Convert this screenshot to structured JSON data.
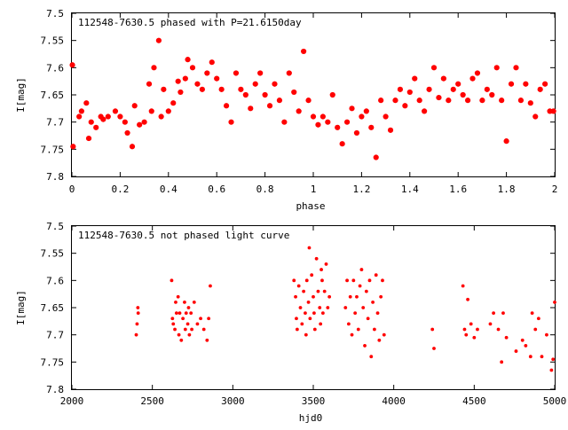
{
  "chart_data": [
    {
      "type": "scatter",
      "title": "112548-7630.5 phased with P=21.6150day",
      "xlabel": "phase",
      "ylabel": "I[mag]",
      "xlim": [
        0,
        2
      ],
      "ylim": [
        7.5,
        7.8
      ],
      "y_inverted": true,
      "xticks": [
        "0",
        "0.2",
        "0.4",
        "0.6",
        "0.8",
        "1",
        "1.2",
        "1.4",
        "1.6",
        "1.8",
        "2"
      ],
      "yticks": [
        "7.5",
        "7.55",
        "7.6",
        "7.65",
        "7.7",
        "7.75",
        "7.8"
      ],
      "grid": false,
      "marker_color": "#ff0000",
      "points": [
        [
          0.002,
          7.595
        ],
        [
          0.005,
          7.745
        ],
        [
          0.03,
          7.69
        ],
        [
          0.04,
          7.68
        ],
        [
          0.06,
          7.665
        ],
        [
          0.07,
          7.73
        ],
        [
          0.08,
          7.7
        ],
        [
          0.1,
          7.71
        ],
        [
          0.12,
          7.69
        ],
        [
          0.13,
          7.695
        ],
        [
          0.15,
          7.69
        ],
        [
          0.18,
          7.68
        ],
        [
          0.2,
          7.69
        ],
        [
          0.22,
          7.7
        ],
        [
          0.23,
          7.72
        ],
        [
          0.25,
          7.745
        ],
        [
          0.26,
          7.67
        ],
        [
          0.28,
          7.705
        ],
        [
          0.3,
          7.7
        ],
        [
          0.32,
          7.63
        ],
        [
          0.33,
          7.68
        ],
        [
          0.34,
          7.6
        ],
        [
          0.36,
          7.55
        ],
        [
          0.37,
          7.69
        ],
        [
          0.38,
          7.64
        ],
        [
          0.4,
          7.68
        ],
        [
          0.42,
          7.665
        ],
        [
          0.44,
          7.625
        ],
        [
          0.45,
          7.645
        ],
        [
          0.47,
          7.62
        ],
        [
          0.48,
          7.585
        ],
        [
          0.5,
          7.6
        ],
        [
          0.52,
          7.63
        ],
        [
          0.54,
          7.64
        ],
        [
          0.56,
          7.61
        ],
        [
          0.58,
          7.59
        ],
        [
          0.6,
          7.62
        ],
        [
          0.62,
          7.64
        ],
        [
          0.64,
          7.67
        ],
        [
          0.66,
          7.7
        ],
        [
          0.68,
          7.61
        ],
        [
          0.7,
          7.64
        ],
        [
          0.72,
          7.65
        ],
        [
          0.74,
          7.675
        ],
        [
          0.76,
          7.63
        ],
        [
          0.78,
          7.61
        ],
        [
          0.8,
          7.65
        ],
        [
          0.82,
          7.67
        ],
        [
          0.84,
          7.63
        ],
        [
          0.86,
          7.66
        ],
        [
          0.88,
          7.7
        ],
        [
          0.9,
          7.61
        ],
        [
          0.92,
          7.645
        ],
        [
          0.94,
          7.68
        ],
        [
          0.96,
          7.57
        ],
        [
          0.98,
          7.66
        ],
        [
          1.0,
          7.69
        ],
        [
          1.02,
          7.705
        ],
        [
          1.04,
          7.69
        ],
        [
          1.06,
          7.7
        ],
        [
          1.08,
          7.65
        ],
        [
          1.1,
          7.71
        ],
        [
          1.12,
          7.74
        ],
        [
          1.14,
          7.7
        ],
        [
          1.16,
          7.675
        ],
        [
          1.18,
          7.72
        ],
        [
          1.2,
          7.69
        ],
        [
          1.22,
          7.68
        ],
        [
          1.24,
          7.71
        ],
        [
          1.26,
          7.765
        ],
        [
          1.28,
          7.66
        ],
        [
          1.3,
          7.69
        ],
        [
          1.32,
          7.715
        ],
        [
          1.34,
          7.66
        ],
        [
          1.36,
          7.64
        ],
        [
          1.38,
          7.67
        ],
        [
          1.4,
          7.645
        ],
        [
          1.42,
          7.62
        ],
        [
          1.44,
          7.66
        ],
        [
          1.46,
          7.68
        ],
        [
          1.48,
          7.64
        ],
        [
          1.5,
          7.6
        ],
        [
          1.52,
          7.655
        ],
        [
          1.54,
          7.62
        ],
        [
          1.56,
          7.66
        ],
        [
          1.58,
          7.64
        ],
        [
          1.6,
          7.63
        ],
        [
          1.62,
          7.65
        ],
        [
          1.64,
          7.66
        ],
        [
          1.66,
          7.62
        ],
        [
          1.68,
          7.61
        ],
        [
          1.7,
          7.66
        ],
        [
          1.72,
          7.64
        ],
        [
          1.74,
          7.65
        ],
        [
          1.76,
          7.6
        ],
        [
          1.78,
          7.66
        ],
        [
          1.8,
          7.735
        ],
        [
          1.82,
          7.63
        ],
        [
          1.84,
          7.6
        ],
        [
          1.86,
          7.66
        ],
        [
          1.88,
          7.63
        ],
        [
          1.9,
          7.665
        ],
        [
          1.92,
          7.69
        ],
        [
          1.94,
          7.64
        ],
        [
          1.96,
          7.63
        ],
        [
          1.98,
          7.68
        ],
        [
          1.995,
          7.68
        ]
      ]
    },
    {
      "type": "scatter",
      "title": "112548-7630.5 not phased light curve",
      "xlabel": "hjd0",
      "ylabel": "I[mag]",
      "xlim": [
        2000,
        5000
      ],
      "ylim": [
        7.5,
        7.8
      ],
      "y_inverted": true,
      "xticks": [
        "2000",
        "2500",
        "3000",
        "3500",
        "4000",
        "4500",
        "5000"
      ],
      "yticks": [
        "7.5",
        "7.55",
        "7.6",
        "7.65",
        "7.7",
        "7.75",
        "7.8"
      ],
      "grid": false,
      "marker_color": "#ff0000",
      "points": [
        [
          2400,
          7.7
        ],
        [
          2405,
          7.68
        ],
        [
          2410,
          7.65
        ],
        [
          2412,
          7.66
        ],
        [
          2620,
          7.6
        ],
        [
          2625,
          7.67
        ],
        [
          2630,
          7.68
        ],
        [
          2640,
          7.69
        ],
        [
          2645,
          7.64
        ],
        [
          2650,
          7.66
        ],
        [
          2660,
          7.63
        ],
        [
          2665,
          7.7
        ],
        [
          2670,
          7.66
        ],
        [
          2680,
          7.71
        ],
        [
          2690,
          7.67
        ],
        [
          2700,
          7.64
        ],
        [
          2705,
          7.69
        ],
        [
          2710,
          7.66
        ],
        [
          2720,
          7.68
        ],
        [
          2725,
          7.65
        ],
        [
          2730,
          7.7
        ],
        [
          2740,
          7.66
        ],
        [
          2745,
          7.69
        ],
        [
          2760,
          7.64
        ],
        [
          2780,
          7.68
        ],
        [
          2800,
          7.67
        ],
        [
          2820,
          7.69
        ],
        [
          2840,
          7.71
        ],
        [
          2850,
          7.67
        ],
        [
          2860,
          7.61
        ],
        [
          3380,
          7.6
        ],
        [
          3390,
          7.63
        ],
        [
          3395,
          7.67
        ],
        [
          3400,
          7.69
        ],
        [
          3410,
          7.61
        ],
        [
          3420,
          7.65
        ],
        [
          3430,
          7.68
        ],
        [
          3440,
          7.62
        ],
        [
          3450,
          7.66
        ],
        [
          3455,
          7.7
        ],
        [
          3460,
          7.6
        ],
        [
          3470,
          7.64
        ],
        [
          3475,
          7.54
        ],
        [
          3480,
          7.67
        ],
        [
          3490,
          7.59
        ],
        [
          3500,
          7.63
        ],
        [
          3505,
          7.66
        ],
        [
          3510,
          7.69
        ],
        [
          3520,
          7.56
        ],
        [
          3530,
          7.62
        ],
        [
          3540,
          7.65
        ],
        [
          3545,
          7.68
        ],
        [
          3550,
          7.58
        ],
        [
          3555,
          7.6
        ],
        [
          3560,
          7.66
        ],
        [
          3570,
          7.62
        ],
        [
          3580,
          7.57
        ],
        [
          3590,
          7.65
        ],
        [
          3600,
          7.63
        ],
        [
          3700,
          7.65
        ],
        [
          3710,
          7.6
        ],
        [
          3720,
          7.68
        ],
        [
          3730,
          7.63
        ],
        [
          3740,
          7.7
        ],
        [
          3750,
          7.6
        ],
        [
          3760,
          7.66
        ],
        [
          3770,
          7.63
        ],
        [
          3780,
          7.69
        ],
        [
          3790,
          7.61
        ],
        [
          3800,
          7.58
        ],
        [
          3810,
          7.65
        ],
        [
          3820,
          7.72
        ],
        [
          3830,
          7.62
        ],
        [
          3840,
          7.67
        ],
        [
          3850,
          7.6
        ],
        [
          3860,
          7.74
        ],
        [
          3870,
          7.64
        ],
        [
          3880,
          7.69
        ],
        [
          3890,
          7.59
        ],
        [
          3900,
          7.66
        ],
        [
          3910,
          7.71
        ],
        [
          3920,
          7.63
        ],
        [
          3930,
          7.6
        ],
        [
          3940,
          7.7
        ],
        [
          4240,
          7.69
        ],
        [
          4250,
          7.725
        ],
        [
          4430,
          7.61
        ],
        [
          4440,
          7.69
        ],
        [
          4450,
          7.7
        ],
        [
          4460,
          7.635
        ],
        [
          4480,
          7.68
        ],
        [
          4500,
          7.705
        ],
        [
          4520,
          7.69
        ],
        [
          4600,
          7.68
        ],
        [
          4620,
          7.66
        ],
        [
          4650,
          7.69
        ],
        [
          4670,
          7.75
        ],
        [
          4680,
          7.66
        ],
        [
          4700,
          7.705
        ],
        [
          4760,
          7.73
        ],
        [
          4800,
          7.71
        ],
        [
          4820,
          7.72
        ],
        [
          4850,
          7.74
        ],
        [
          4860,
          7.66
        ],
        [
          4880,
          7.69
        ],
        [
          4900,
          7.67
        ],
        [
          4920,
          7.74
        ],
        [
          4950,
          7.7
        ],
        [
          4980,
          7.765
        ],
        [
          4990,
          7.745
        ],
        [
          5000,
          7.64
        ]
      ]
    }
  ]
}
